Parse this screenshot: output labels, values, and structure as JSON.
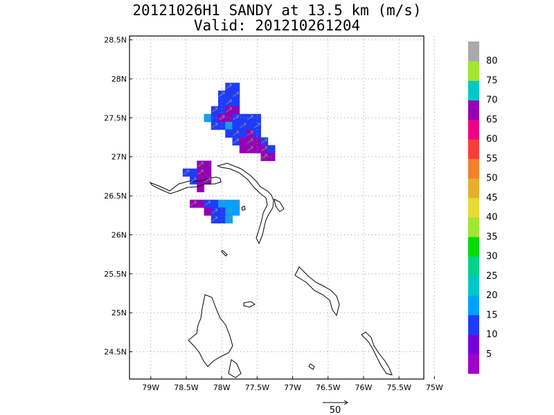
{
  "title": {
    "line1": "20121026H1 SANDY at 13.5 km (m/s)",
    "line2": "Valid: 201210261204"
  },
  "map_data": {
    "type": "gridded wind speed map with vectors",
    "lon_range": [
      -79.3,
      -75.15
    ],
    "lat_range": [
      24.15,
      28.55
    ],
    "lon_ticks": [
      {
        "v": -79,
        "label": "79W"
      },
      {
        "v": -78.5,
        "label": "78.5W"
      },
      {
        "v": -78,
        "label": "78W"
      },
      {
        "v": -77.5,
        "label": "77.5W"
      },
      {
        "v": -77,
        "label": "77W"
      },
      {
        "v": -76.5,
        "label": "76.5W"
      },
      {
        "v": -76,
        "label": "76W"
      },
      {
        "v": -75.5,
        "label": "75.5W"
      },
      {
        "v": -75,
        "label": "75W"
      }
    ],
    "lat_ticks": [
      {
        "v": 28.5,
        "label": "28.5N"
      },
      {
        "v": 28,
        "label": "28N"
      },
      {
        "v": 27.5,
        "label": "27.5N"
      },
      {
        "v": 27,
        "label": "27N"
      },
      {
        "v": 26.5,
        "label": "26.5N"
      },
      {
        "v": 26,
        "label": "26N"
      },
      {
        "v": 25.5,
        "label": "25.5N"
      },
      {
        "v": 25,
        "label": "25N"
      },
      {
        "v": 24.5,
        "label": "24.5N"
      }
    ],
    "grid": true,
    "colorbar": {
      "levels": [
        "",
        "5",
        "10",
        "15",
        "20",
        "25",
        "30",
        "35",
        "40",
        "45",
        "50",
        "55",
        "60",
        "65",
        "70",
        "75",
        "80",
        ""
      ],
      "colors": [
        "#a000c8",
        "#7800dc",
        "#1e3cff",
        "#00a0ff",
        "#00c8c8",
        "#00d28c",
        "#00dc00",
        "#a0e632",
        "#e6dc32",
        "#e6af2d",
        "#f08228",
        "#fa3c3c",
        "#f00082",
        "#9600b4",
        "#00c8c8",
        "#a0e632",
        "#aaaaaa"
      ]
    },
    "wind_cells": [
      {
        "lon": -77.9,
        "lat": 27.9,
        "c": 2
      },
      {
        "lon": -77.8,
        "lat": 27.9,
        "c": 2
      },
      {
        "lon": -78.0,
        "lat": 27.8,
        "c": 2
      },
      {
        "lon": -77.9,
        "lat": 27.8,
        "c": 2
      },
      {
        "lon": -77.8,
        "lat": 27.8,
        "c": 2
      },
      {
        "lon": -78.0,
        "lat": 27.7,
        "c": 2
      },
      {
        "lon": -77.9,
        "lat": 27.7,
        "c": 2
      },
      {
        "lon": -77.8,
        "lat": 27.7,
        "c": 2
      },
      {
        "lon": -78.1,
        "lat": 27.6,
        "c": 2
      },
      {
        "lon": -78.0,
        "lat": 27.6,
        "c": 2
      },
      {
        "lon": -77.9,
        "lat": 27.6,
        "c": 13
      },
      {
        "lon": -77.8,
        "lat": 27.6,
        "c": 13
      },
      {
        "lon": -78.2,
        "lat": 27.5,
        "c": 3
      },
      {
        "lon": -78.1,
        "lat": 27.5,
        "c": 2
      },
      {
        "lon": -78.0,
        "lat": 27.5,
        "c": 13
      },
      {
        "lon": -77.9,
        "lat": 27.5,
        "c": 13
      },
      {
        "lon": -77.8,
        "lat": 27.5,
        "c": 2
      },
      {
        "lon": -77.7,
        "lat": 27.5,
        "c": 2
      },
      {
        "lon": -77.6,
        "lat": 27.5,
        "c": 2
      },
      {
        "lon": -77.5,
        "lat": 27.5,
        "c": 2
      },
      {
        "lon": -78.1,
        "lat": 27.4,
        "c": 2
      },
      {
        "lon": -78.0,
        "lat": 27.4,
        "c": 2
      },
      {
        "lon": -77.9,
        "lat": 27.4,
        "c": 3
      },
      {
        "lon": -77.8,
        "lat": 27.4,
        "c": 2
      },
      {
        "lon": -77.7,
        "lat": 27.4,
        "c": 2
      },
      {
        "lon": -77.6,
        "lat": 27.4,
        "c": 2
      },
      {
        "lon": -77.5,
        "lat": 27.4,
        "c": 2
      },
      {
        "lon": -77.9,
        "lat": 27.3,
        "c": 2
      },
      {
        "lon": -77.8,
        "lat": 27.3,
        "c": 2
      },
      {
        "lon": -77.7,
        "lat": 27.3,
        "c": 2
      },
      {
        "lon": -77.6,
        "lat": 27.3,
        "c": 13
      },
      {
        "lon": -77.5,
        "lat": 27.3,
        "c": 2
      },
      {
        "lon": -77.8,
        "lat": 27.2,
        "c": 2
      },
      {
        "lon": -77.7,
        "lat": 27.2,
        "c": 13
      },
      {
        "lon": -77.6,
        "lat": 27.2,
        "c": 13
      },
      {
        "lon": -77.5,
        "lat": 27.2,
        "c": 13
      },
      {
        "lon": -77.4,
        "lat": 27.2,
        "c": 2
      },
      {
        "lon": -77.7,
        "lat": 27.1,
        "c": 13
      },
      {
        "lon": -77.6,
        "lat": 27.1,
        "c": 13
      },
      {
        "lon": -77.5,
        "lat": 27.1,
        "c": 13
      },
      {
        "lon": -77.4,
        "lat": 27.1,
        "c": 13
      },
      {
        "lon": -77.3,
        "lat": 27.1,
        "c": 2
      },
      {
        "lon": -77.4,
        "lat": 27.0,
        "c": 13
      },
      {
        "lon": -77.3,
        "lat": 27.0,
        "c": 13
      },
      {
        "lon": -78.3,
        "lat": 26.9,
        "c": 13
      },
      {
        "lon": -78.2,
        "lat": 26.9,
        "c": 13
      },
      {
        "lon": -78.5,
        "lat": 26.8,
        "c": 2
      },
      {
        "lon": -78.4,
        "lat": 26.8,
        "c": 2
      },
      {
        "lon": -78.3,
        "lat": 26.8,
        "c": 13
      },
      {
        "lon": -78.2,
        "lat": 26.8,
        "c": 13
      },
      {
        "lon": -78.4,
        "lat": 26.7,
        "c": 2
      },
      {
        "lon": -78.3,
        "lat": 26.7,
        "c": 13
      },
      {
        "lon": -78.2,
        "lat": 26.7,
        "c": 13
      },
      {
        "lon": -78.3,
        "lat": 26.6,
        "c": 13
      },
      {
        "lon": -78.4,
        "lat": 26.4,
        "c": 13
      },
      {
        "lon": -78.3,
        "lat": 26.4,
        "c": 13
      },
      {
        "lon": -78.2,
        "lat": 26.4,
        "c": 2
      },
      {
        "lon": -78.1,
        "lat": 26.4,
        "c": 2
      },
      {
        "lon": -78.0,
        "lat": 26.4,
        "c": 3
      },
      {
        "lon": -77.9,
        "lat": 26.4,
        "c": 3
      },
      {
        "lon": -77.8,
        "lat": 26.4,
        "c": 3
      },
      {
        "lon": -78.2,
        "lat": 26.3,
        "c": 13
      },
      {
        "lon": -78.1,
        "lat": 26.3,
        "c": 2
      },
      {
        "lon": -78.0,
        "lat": 26.3,
        "c": 2
      },
      {
        "lon": -77.9,
        "lat": 26.3,
        "c": 3
      },
      {
        "lon": -77.8,
        "lat": 26.3,
        "c": 3
      },
      {
        "lon": -78.1,
        "lat": 26.2,
        "c": 2
      },
      {
        "lon": -78.0,
        "lat": 26.2,
        "c": 2
      },
      {
        "lon": -77.9,
        "lat": 26.2,
        "c": 3
      }
    ],
    "vector_reference_label": "50"
  }
}
